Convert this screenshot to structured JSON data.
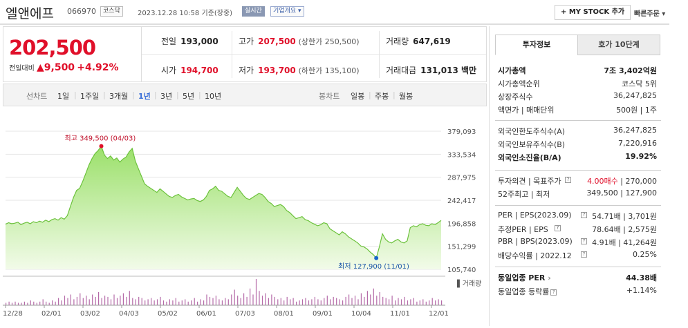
{
  "header": {
    "name": "엘앤에프",
    "code": "066970",
    "market": "코스닥",
    "datetime": "2023.12.28 10:58",
    "basis": "기준(장중)",
    "realtime": "실시간",
    "company_info": "기업개요",
    "mystock": "+ MY STOCK 추가",
    "quick_order": "빠른주문"
  },
  "quote": {
    "price": "202,500",
    "change_label": "전일대비",
    "change_value": "▲9,500",
    "change_pct": "+4.92%",
    "prev_label": "전일",
    "prev": "193,000",
    "high_label": "고가",
    "high": "207,500",
    "upper_limit": "(상한가 250,500)",
    "volume_label": "거래량",
    "volume": "647,619",
    "open_label": "시가",
    "open": "194,700",
    "low_label": "저가",
    "low": "193,700",
    "lower_limit": "(하한가 135,100)",
    "amount_label": "거래대금",
    "amount": "131,013 백만"
  },
  "periods": {
    "line_label": "선차트",
    "items": [
      "1일",
      "1주일",
      "3개월",
      "1년",
      "3년",
      "5년",
      "10년"
    ],
    "selected": "1년",
    "candle_label": "봉차트",
    "candle_items": [
      "일봉",
      "주봉",
      "월봉"
    ]
  },
  "chart_data": {
    "type": "area",
    "ylim": [
      105740,
      379093
    ],
    "yticks": [
      "379,093",
      "333,534",
      "287,975",
      "242,417",
      "196,858",
      "151,299",
      "105,740"
    ],
    "xticks": [
      "12/28",
      "02/01",
      "03/02",
      "04/03",
      "05/02",
      "06/01",
      "07/03",
      "08/01",
      "09/01",
      "10/04",
      "11/01",
      "12/01"
    ],
    "values": [
      195000,
      198000,
      196000,
      197000,
      199000,
      194000,
      197000,
      199000,
      196000,
      200000,
      198000,
      201000,
      199000,
      203000,
      200000,
      204000,
      206000,
      203000,
      208000,
      205000,
      212000,
      230000,
      248000,
      262000,
      266000,
      280000,
      296000,
      312000,
      325000,
      335000,
      341000,
      349500,
      332000,
      325000,
      330000,
      322000,
      326000,
      318000,
      324000,
      328000,
      338000,
      345000,
      320000,
      305000,
      290000,
      275000,
      270000,
      266000,
      262000,
      258000,
      265000,
      260000,
      255000,
      250000,
      248000,
      252000,
      254000,
      249000,
      246000,
      243000,
      245000,
      246000,
      242000,
      240000,
      243000,
      250000,
      262000,
      265000,
      270000,
      262000,
      260000,
      255000,
      250000,
      248000,
      258000,
      268000,
      260000,
      252000,
      246000,
      244000,
      248000,
      252000,
      256000,
      254000,
      248000,
      240000,
      236000,
      230000,
      232000,
      234000,
      230000,
      222000,
      218000,
      212000,
      206000,
      208000,
      210000,
      204000,
      202000,
      198000,
      195000,
      192000,
      194000,
      198000,
      196000,
      186000,
      182000,
      178000,
      174000,
      180000,
      176000,
      170000,
      166000,
      162000,
      158000,
      152000,
      150000,
      146000,
      140000,
      135000,
      127900,
      150000,
      176000,
      165000,
      160000,
      158000,
      162000,
      165000,
      160000,
      158000,
      162000,
      188000,
      192000,
      190000,
      194000,
      196000,
      193000,
      192000,
      196000,
      194000,
      198000,
      202500
    ],
    "high": {
      "label": "최고 349,500 (04/03)",
      "value": 349500
    },
    "low": {
      "label": "최저 127,900 (11/01)",
      "value": 127900
    },
    "volume_label": "거래량",
    "volumes": [
      2,
      3,
      2,
      3,
      2,
      2,
      3,
      2,
      4,
      3,
      2,
      3,
      5,
      3,
      2,
      4,
      3,
      6,
      4,
      8,
      6,
      9,
      5,
      7,
      10,
      6,
      8,
      5,
      9,
      7,
      11,
      6,
      8,
      7,
      5,
      9,
      6,
      8,
      10,
      7,
      12,
      6,
      5,
      7,
      6,
      4,
      5,
      6,
      4,
      5,
      7,
      4,
      3,
      5,
      4,
      6,
      3,
      4,
      5,
      3,
      4,
      6,
      3,
      5,
      4,
      9,
      7,
      6,
      8,
      5,
      4,
      6,
      5,
      9,
      13,
      8,
      6,
      10,
      7,
      14,
      9,
      22,
      12,
      8,
      10,
      6,
      9,
      7,
      5,
      6,
      4,
      7,
      5,
      6,
      3,
      4,
      5,
      6,
      4,
      5,
      7,
      5,
      4,
      6,
      8,
      5,
      7,
      6,
      5,
      4,
      7,
      9,
      6,
      8,
      5,
      10,
      7,
      12,
      9,
      14,
      8,
      11,
      7,
      6,
      5,
      8,
      4,
      6,
      5,
      7,
      4,
      5,
      6,
      3,
      4,
      5,
      3,
      4,
      6,
      4,
      5,
      4
    ]
  },
  "side": {
    "tab_invest": "투자정보",
    "tab_hoga": "호가 10단계",
    "rows1": [
      {
        "k": "시가총액",
        "v": "7조 3,402억원",
        "b": true
      },
      {
        "k": "시가총액순위",
        "v": "코스닥 5위"
      },
      {
        "k": "상장주식수",
        "v": "36,247,825"
      },
      {
        "k": "액면가 | 매매단위",
        "v": "500원 | 1주"
      }
    ],
    "rows2": [
      {
        "k": "외국인한도주식수(A)",
        "v": "36,247,825"
      },
      {
        "k": "외국인보유주식수(B)",
        "v": "7,220,916"
      },
      {
        "k": "외국인소진율(B/A)",
        "v": "19.92%",
        "b": true
      }
    ],
    "target_k": "투자의견 | 목표주가",
    "target_opinion": "4.00매수",
    "target_price": "270,000",
    "w52_k": "52주최고 | 최저",
    "w52_v": "349,500 | 127,900",
    "per_k": "PER | EPS(2023.09)",
    "per_v": "54.71배 | 3,701원",
    "eper_k": "추정PER | EPS",
    "eper_v": "78.64배 | 2,575원",
    "pbr_k": "PBR | BPS(2023.09)",
    "pbr_v": "4.91배 | 41,264원",
    "div_k": "배당수익률 | 2022.12",
    "div_v": "0.25%",
    "ind_per_k": "동일업종 PER",
    "ind_per_v": "44.38배",
    "ind_rate_k": "동일업종 등락률",
    "ind_rate_v": "+1.14%"
  }
}
